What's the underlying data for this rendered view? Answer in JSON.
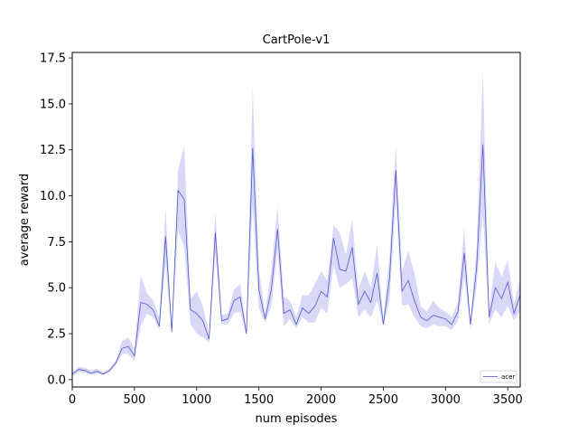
{
  "chart_data": {
    "type": "line",
    "title": "CartPole-v1",
    "xlabel": "num episodes",
    "ylabel": "average reward",
    "xlim": [
      0,
      3600
    ],
    "ylim": [
      -0.4,
      17.8
    ],
    "xticks": [
      0,
      500,
      1000,
      1500,
      2000,
      2500,
      3000,
      3500
    ],
    "yticks": [
      0.0,
      2.5,
      5.0,
      7.5,
      10.0,
      12.5,
      15.0,
      17.5
    ],
    "xtick_labels": [
      "0",
      "500",
      "1000",
      "1500",
      "2000",
      "2500",
      "3000",
      "3500"
    ],
    "ytick_labels": [
      "0.0",
      "2.5",
      "5.0",
      "7.5",
      "10.0",
      "12.5",
      "15.0",
      "17.5"
    ],
    "grid": false,
    "legend_position": "bottom-right",
    "series": [
      {
        "name": "acer",
        "color": "#5555cc",
        "band_color": "#d9d9f7",
        "x": [
          0,
          50,
          100,
          150,
          200,
          250,
          300,
          350,
          400,
          450,
          500,
          550,
          600,
          650,
          700,
          750,
          800,
          850,
          900,
          950,
          1000,
          1050,
          1100,
          1150,
          1200,
          1250,
          1300,
          1350,
          1400,
          1450,
          1500,
          1550,
          1600,
          1650,
          1700,
          1750,
          1800,
          1850,
          1900,
          1950,
          2000,
          2050,
          2100,
          2150,
          2200,
          2250,
          2300,
          2350,
          2400,
          2450,
          2500,
          2550,
          2600,
          2650,
          2700,
          2750,
          2800,
          2850,
          2900,
          2950,
          3000,
          3050,
          3100,
          3150,
          3200,
          3250,
          3300,
          3350,
          3400,
          3450,
          3500,
          3550,
          3600
        ],
        "y": [
          0.3,
          0.55,
          0.5,
          0.35,
          0.45,
          0.3,
          0.5,
          0.9,
          1.7,
          1.8,
          1.3,
          4.2,
          4.1,
          3.8,
          2.9,
          7.8,
          2.6,
          10.3,
          9.8,
          3.8,
          3.6,
          3.2,
          2.2,
          8.0,
          3.2,
          3.3,
          4.3,
          4.5,
          2.5,
          12.6,
          4.9,
          3.3,
          4.9,
          8.2,
          3.6,
          3.8,
          3.0,
          3.9,
          3.6,
          4.0,
          4.8,
          4.5,
          7.7,
          6.0,
          5.9,
          7.2,
          4.1,
          4.8,
          4.2,
          5.8,
          3.0,
          5.5,
          11.4,
          4.8,
          5.4,
          4.3,
          3.4,
          3.2,
          3.5,
          3.4,
          3.3,
          3.0,
          3.7,
          6.9,
          3.0,
          6.1,
          12.8,
          3.4,
          5.0,
          4.4,
          5.3,
          3.6,
          4.6
        ],
        "y_lower": [
          0.2,
          0.4,
          0.4,
          0.25,
          0.35,
          0.25,
          0.4,
          0.8,
          1.4,
          1.4,
          1.0,
          2.9,
          3.6,
          3.4,
          2.7,
          6.3,
          2.5,
          8.1,
          7.2,
          3.0,
          2.5,
          2.3,
          2.0,
          6.8,
          3.0,
          3.0,
          3.6,
          3.7,
          2.4,
          9.5,
          3.9,
          3.1,
          4.0,
          7.0,
          2.9,
          3.3,
          2.8,
          3.4,
          3.1,
          3.1,
          3.9,
          3.6,
          6.2,
          5.0,
          5.2,
          5.5,
          3.4,
          3.8,
          3.4,
          4.3,
          2.9,
          4.3,
          9.8,
          4.0,
          4.1,
          3.4,
          2.9,
          2.8,
          3.0,
          2.9,
          2.9,
          2.7,
          3.2,
          5.6,
          2.8,
          5.1,
          9.0,
          3.0,
          3.8,
          3.4,
          4.0,
          3.2,
          3.7
        ],
        "y_upper": [
          0.4,
          0.7,
          0.65,
          0.5,
          0.6,
          0.4,
          0.6,
          1.05,
          2.1,
          2.3,
          1.7,
          5.7,
          4.7,
          4.3,
          3.4,
          9.3,
          2.8,
          11.4,
          12.7,
          4.4,
          4.8,
          4.0,
          2.5,
          9.2,
          3.5,
          3.6,
          4.9,
          5.2,
          2.7,
          15.9,
          6.0,
          3.6,
          6.0,
          9.4,
          4.5,
          4.3,
          3.4,
          4.6,
          4.6,
          5.2,
          5.9,
          5.4,
          8.4,
          8.0,
          6.8,
          8.7,
          4.9,
          5.9,
          5.0,
          7.4,
          3.3,
          6.8,
          12.8,
          5.9,
          7.0,
          5.8,
          4.0,
          3.7,
          4.3,
          3.9,
          3.7,
          3.4,
          4.2,
          8.3,
          3.2,
          7.2,
          16.8,
          3.8,
          6.4,
          5.6,
          6.5,
          4.1,
          5.5
        ]
      }
    ]
  }
}
